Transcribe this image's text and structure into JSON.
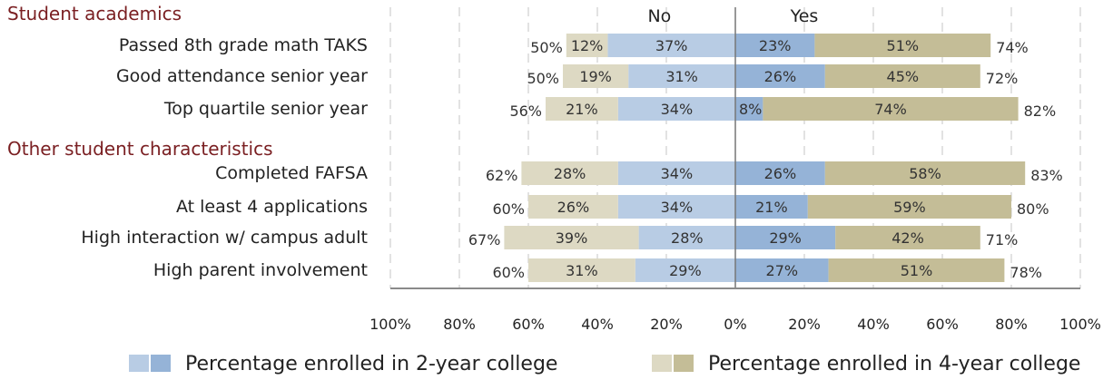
{
  "chart_data": {
    "type": "bar",
    "orientation": "horizontal",
    "stacked": "diverging",
    "column_headers": {
      "left": "No",
      "right": "Yes"
    },
    "sections": [
      {
        "title": "Student academics",
        "start_row": 0
      },
      {
        "title": "Other student characteristics",
        "start_row": 3
      }
    ],
    "categories": [
      "Passed 8th grade math TAKS",
      "Good attendance senior year",
      "Top quartile senior year",
      "Completed FAFSA",
      "At least 4 applications",
      "High interaction w/ campus adult",
      "High parent involvement"
    ],
    "series": [
      {
        "name": "Percentage enrolled in 2-year college",
        "side": "No",
        "values": [
          37,
          31,
          34,
          34,
          34,
          28,
          29
        ],
        "color": "#b8cce4"
      },
      {
        "name": "Percentage enrolled in 4-year college",
        "side": "No",
        "values": [
          12,
          19,
          21,
          28,
          26,
          39,
          31
        ],
        "color": "#ddd9c3"
      },
      {
        "name": "Percentage enrolled in 2-year college",
        "side": "Yes",
        "values": [
          23,
          26,
          8,
          26,
          21,
          29,
          27
        ],
        "color": "#95b3d7"
      },
      {
        "name": "Percentage enrolled in 4-year college",
        "side": "Yes",
        "values": [
          51,
          45,
          74,
          58,
          59,
          42,
          51
        ],
        "color": "#c4bd97"
      }
    ],
    "totals": {
      "No": [
        50,
        50,
        56,
        62,
        60,
        67,
        60
      ],
      "Yes": [
        74,
        72,
        82,
        83,
        80,
        71,
        78
      ]
    },
    "x_ticks": [
      100,
      80,
      60,
      40,
      20,
      0,
      20,
      40,
      60,
      80,
      100
    ],
    "tick_suffix": "%",
    "xlim": [
      -100,
      100
    ],
    "grid": true,
    "legend_position": "bottom",
    "legend": [
      {
        "label": "Percentage enrolled in 2-year college",
        "colors": [
          "#b8cce4",
          "#95b3d7"
        ]
      },
      {
        "label": "Percentage enrolled in 4-year college",
        "colors": [
          "#ddd9c3",
          "#c4bd97"
        ]
      }
    ]
  }
}
